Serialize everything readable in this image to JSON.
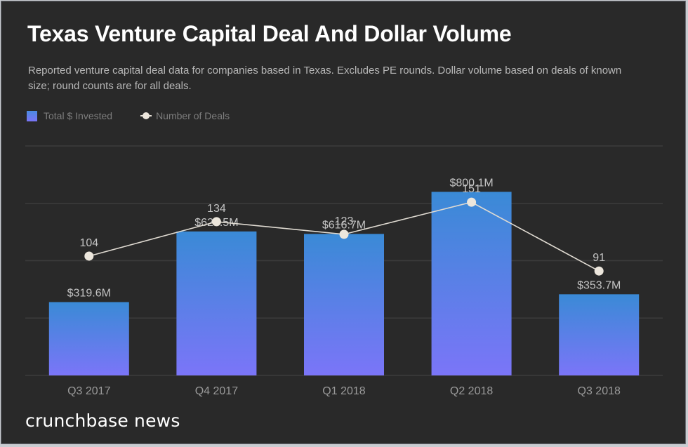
{
  "header": {
    "title": "Texas Venture Capital Deal And Dollar Volume",
    "subtitle": "Reported venture capital deal data for companies based in Texas. Excludes PE rounds. Dollar volume based on deals of known size; round counts are for all deals."
  },
  "legend": [
    {
      "label": "Total $ Invested",
      "marker": "square-swatch"
    },
    {
      "label": "Number of Deals",
      "marker": "line-dot"
    }
  ],
  "brand": "crunchbase news",
  "colors": {
    "background": "#292929",
    "bar_top": "#3a8ad6",
    "bar_bottom": "#7b75f8",
    "line": "#e0dbd2",
    "gridline": "#3c3c3c",
    "label_text": "#c4c4c4"
  },
  "chart_data": {
    "type": "bar+line",
    "title": "Texas Venture Capital Deal And Dollar Volume",
    "categories": [
      "Q3 2017",
      "Q4 2017",
      "Q1 2018",
      "Q2 2018",
      "Q3 2018"
    ],
    "series": [
      {
        "name": "Total $ Invested",
        "type": "bar",
        "unit": "USD millions",
        "values": [
          319.6,
          627.5,
          616.7,
          800.1,
          353.7
        ],
        "labels": [
          "$319.6M",
          "$627.5M",
          "$616.7M",
          "$800.1M",
          "$353.7M"
        ]
      },
      {
        "name": "Number of Deals",
        "type": "line",
        "values": [
          104,
          134,
          123,
          151,
          91
        ],
        "labels": [
          "104",
          "134",
          "123",
          "151",
          "91"
        ]
      }
    ],
    "bar_axis_range": [
      0,
      1000
    ],
    "line_axis_range": [
      0,
      200
    ],
    "gridlines": 5,
    "grid": true,
    "legend_position": "top-left",
    "xlabel": "",
    "ylabel": ""
  }
}
